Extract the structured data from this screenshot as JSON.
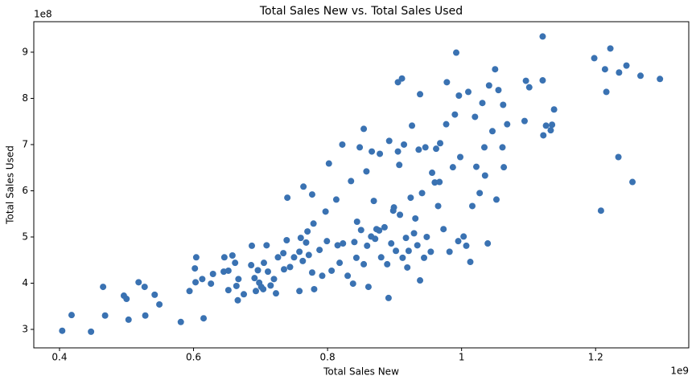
{
  "chart_data": {
    "type": "scatter",
    "title": "Total Sales New vs. Total Sales Used",
    "x_label": "Total Sales New",
    "y_label": "Total Sales Used",
    "x_offset_label": "1e9",
    "y_offset_label": "1e8",
    "color": "#3a72b2",
    "xlim": [
      0.3616,
      1.339
    ],
    "ylim": [
      2.6,
      9.66
    ],
    "xticks": [
      0.4,
      0.6,
      0.8,
      1.0,
      1.2
    ],
    "yticks": [
      3,
      4,
      5,
      6,
      7,
      8,
      9
    ],
    "x": [
      0.404,
      0.418,
      0.447,
      0.465,
      0.468,
      0.496,
      0.5,
      0.503,
      0.518,
      0.527,
      0.528,
      0.542,
      0.549,
      0.581,
      0.594,
      0.602,
      0.604,
      0.603,
      0.613,
      0.615,
      0.626,
      0.629,
      0.645,
      0.646,
      0.652,
      0.652,
      0.658,
      0.662,
      0.664,
      0.667,
      0.666,
      0.675,
      0.686,
      0.687,
      0.691,
      0.693,
      0.696,
      0.698,
      0.701,
      0.704,
      0.705,
      0.709,
      0.711,
      0.715,
      0.72,
      0.723,
      0.726,
      0.734,
      0.735,
      0.739,
      0.74,
      0.744,
      0.75,
      0.758,
      0.758,
      0.76,
      0.763,
      0.764,
      0.768,
      0.77,
      0.772,
      0.777,
      0.777,
      0.779,
      0.78,
      0.788,
      0.792,
      0.797,
      0.799,
      0.802,
      0.806,
      0.813,
      0.815,
      0.818,
      0.822,
      0.823,
      0.83,
      0.835,
      0.838,
      0.84,
      0.843,
      0.844,
      0.848,
      0.85,
      0.854,
      0.854,
      0.858,
      0.859,
      0.861,
      0.865,
      0.866,
      0.869,
      0.871,
      0.873,
      0.877,
      0.878,
      0.88,
      0.885,
      0.889,
      0.891,
      0.892,
      0.895,
      0.898,
      0.899,
      0.902,
      0.905,
      0.905,
      0.907,
      0.908,
      0.911,
      0.912,
      0.914,
      0.917,
      0.919,
      0.921,
      0.924,
      0.926,
      0.929,
      0.931,
      0.934,
      0.936,
      0.938,
      0.938,
      0.941,
      0.944,
      0.946,
      0.948,
      0.954,
      0.956,
      0.96,
      0.962,
      0.965,
      0.967,
      0.968,
      0.973,
      0.977,
      0.978,
      0.982,
      0.987,
      0.99,
      0.992,
      0.995,
      0.996,
      0.998,
      1.003,
      1.007,
      1.01,
      1.013,
      1.016,
      1.02,
      1.022,
      1.027,
      1.031,
      1.034,
      1.035,
      1.039,
      1.041,
      1.046,
      1.05,
      1.052,
      1.055,
      1.061,
      1.062,
      1.063,
      1.068,
      1.094,
      1.096,
      1.101,
      1.121,
      1.121,
      1.122,
      1.126,
      1.133,
      1.135,
      1.138,
      1.198,
      1.208,
      1.214,
      1.216,
      1.222,
      1.234,
      1.235,
      1.246,
      1.255,
      1.267,
      1.296
    ],
    "y": [
      2.97,
      3.31,
      2.95,
      3.92,
      3.3,
      3.73,
      3.66,
      3.21,
      4.02,
      3.92,
      3.3,
      3.75,
      3.54,
      3.16,
      3.83,
      4.32,
      4.56,
      4.02,
      4.09,
      3.24,
      3.99,
      4.2,
      4.25,
      4.56,
      3.85,
      4.27,
      4.6,
      4.44,
      3.94,
      4.09,
      3.63,
      3.76,
      4.39,
      4.81,
      4.11,
      3.83,
      4.28,
      4.01,
      3.92,
      3.87,
      4.44,
      4.82,
      4.25,
      3.95,
      4.09,
      3.78,
      4.56,
      4.65,
      4.3,
      4.93,
      5.85,
      4.35,
      4.56,
      4.68,
      3.83,
      4.98,
      4.48,
      6.09,
      4.88,
      5.12,
      4.61,
      4.23,
      5.92,
      5.29,
      3.87,
      4.72,
      4.16,
      5.55,
      4.91,
      6.59,
      4.27,
      5.81,
      4.82,
      4.44,
      7.0,
      4.86,
      4.16,
      6.21,
      3.99,
      4.89,
      4.55,
      5.33,
      6.94,
      5.15,
      7.34,
      4.41,
      6.42,
      4.81,
      3.92,
      5.01,
      6.85,
      5.78,
      4.96,
      5.17,
      5.14,
      6.8,
      4.56,
      5.21,
      4.41,
      3.68,
      7.08,
      4.86,
      5.57,
      5.64,
      4.7,
      8.35,
      6.85,
      6.56,
      5.48,
      8.43,
      4.55,
      7.0,
      4.98,
      4.34,
      4.7,
      5.85,
      7.41,
      5.08,
      5.4,
      4.82,
      6.89,
      4.06,
      8.09,
      5.95,
      4.55,
      6.94,
      5.0,
      4.68,
      6.39,
      6.18,
      6.91,
      5.67,
      6.19,
      7.03,
      5.17,
      7.44,
      8.35,
      4.68,
      6.51,
      7.65,
      8.99,
      4.91,
      8.06,
      6.73,
      5.01,
      4.81,
      8.14,
      4.46,
      5.67,
      7.6,
      6.52,
      5.95,
      7.9,
      6.94,
      6.33,
      4.86,
      8.28,
      7.29,
      8.63,
      5.81,
      8.18,
      6.94,
      7.86,
      6.51,
      7.44,
      7.51,
      8.38,
      8.24,
      9.34,
      8.39,
      7.2,
      7.41,
      7.31,
      7.43,
      7.76,
      8.87,
      5.57,
      8.63,
      8.14,
      9.08,
      6.73,
      8.56,
      8.71,
      6.19,
      8.49,
      8.42
    ]
  }
}
